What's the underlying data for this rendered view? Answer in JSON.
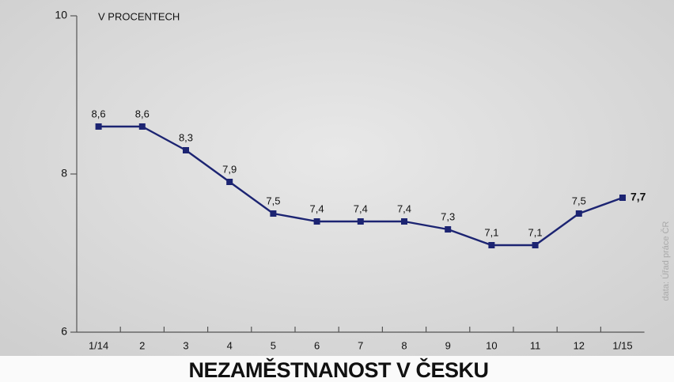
{
  "chart_data": {
    "type": "line",
    "title": "NEZAMĚSTNANOST V ČESKU",
    "y_label": "V PROCENTECH",
    "source": "data: Úřad práce ČR",
    "categories": [
      "1/14",
      "2",
      "3",
      "4",
      "5",
      "6",
      "7",
      "8",
      "9",
      "10",
      "11",
      "12",
      "1/15"
    ],
    "values": [
      8.6,
      8.6,
      8.3,
      7.9,
      7.5,
      7.4,
      7.4,
      7.4,
      7.3,
      7.1,
      7.1,
      7.5,
      7.7
    ],
    "value_labels": [
      "8,6",
      "8,6",
      "8,3",
      "7,9",
      "7,5",
      "7,4",
      "7,4",
      "7,4",
      "7,3",
      "7,1",
      "7,1",
      "7,5",
      "7,7"
    ],
    "color": "#1c2472",
    "ylim": [
      6,
      10
    ],
    "yticks": [
      6,
      8,
      10
    ]
  }
}
